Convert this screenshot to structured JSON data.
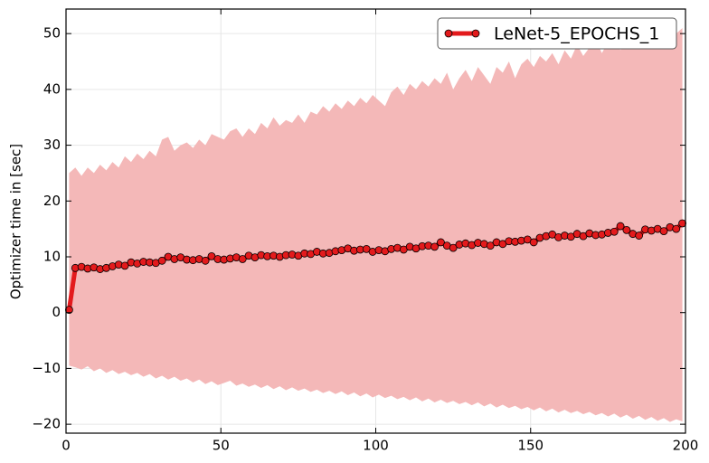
{
  "chart_data": {
    "type": "line",
    "ylabel": "Optimizer time in [sec]",
    "xlim": [
      0,
      200
    ],
    "ylim": [
      -21.6,
      54.4
    ],
    "xticks": [
      0,
      50,
      100,
      150,
      200
    ],
    "yticks": [
      {
        "value": -20,
        "label": "−20"
      },
      {
        "value": -10,
        "label": "−10"
      },
      0,
      10,
      20,
      30,
      40,
      50
    ],
    "grid": true,
    "legend": "upper right",
    "x": [
      1,
      3,
      5,
      7,
      9,
      11,
      13,
      15,
      17,
      19,
      21,
      23,
      25,
      27,
      29,
      31,
      33,
      35,
      37,
      39,
      41,
      43,
      45,
      47,
      49,
      51,
      53,
      55,
      57,
      59,
      61,
      63,
      65,
      67,
      69,
      71,
      73,
      75,
      77,
      79,
      81,
      83,
      85,
      87,
      89,
      91,
      93,
      95,
      97,
      99,
      101,
      103,
      105,
      107,
      109,
      111,
      113,
      115,
      117,
      119,
      121,
      123,
      125,
      127,
      129,
      131,
      133,
      135,
      137,
      139,
      141,
      143,
      145,
      147,
      149,
      151,
      153,
      155,
      157,
      159,
      161,
      163,
      165,
      167,
      169,
      171,
      173,
      175,
      177,
      179,
      181,
      183,
      185,
      187,
      189,
      191,
      193,
      195,
      197,
      199
    ],
    "series": [
      {
        "name": "LeNet-5_EPOCHS_1",
        "color": "#e31a1c",
        "band_color": "#f4b8b8",
        "values": [
          0.5,
          8.0,
          8.2,
          7.9,
          8.1,
          7.8,
          8.0,
          8.3,
          8.6,
          8.4,
          9.0,
          8.8,
          9.1,
          9.0,
          8.9,
          9.3,
          10.0,
          9.6,
          9.9,
          9.5,
          9.4,
          9.6,
          9.3,
          10.1,
          9.6,
          9.5,
          9.7,
          9.9,
          9.6,
          10.2,
          9.9,
          10.3,
          10.1,
          10.2,
          10.0,
          10.3,
          10.4,
          10.2,
          10.6,
          10.5,
          10.9,
          10.6,
          10.7,
          11.0,
          11.2,
          11.5,
          11.1,
          11.3,
          11.4,
          10.9,
          11.2,
          11.0,
          11.4,
          11.6,
          11.3,
          11.8,
          11.5,
          11.9,
          12.0,
          11.8,
          12.6,
          12.0,
          11.6,
          12.2,
          12.4,
          12.1,
          12.5,
          12.3,
          12.0,
          12.6,
          12.3,
          12.8,
          12.7,
          12.9,
          13.1,
          12.6,
          13.4,
          13.7,
          14.0,
          13.5,
          13.8,
          13.6,
          14.1,
          13.7,
          14.2,
          13.9,
          14.0,
          14.3,
          14.5,
          15.5,
          14.8,
          14.1,
          13.8,
          14.9,
          14.7,
          15.0,
          14.6,
          15.3,
          15.0,
          16.0
        ],
        "upper": [
          25,
          26,
          24.5,
          26,
          25,
          26.5,
          25.5,
          27,
          26,
          28,
          27,
          28.5,
          27.5,
          29,
          28,
          31,
          31.5,
          29,
          30,
          30.5,
          29.5,
          31,
          30,
          32,
          31.5,
          31,
          32.5,
          33,
          31.5,
          33,
          32,
          34,
          33,
          35,
          33.5,
          34.5,
          34,
          35.5,
          34,
          36,
          35.5,
          37,
          36,
          37.5,
          36.5,
          38,
          37,
          38.5,
          37.5,
          39,
          38,
          37,
          39.5,
          40.5,
          39,
          41,
          40,
          41.5,
          40.5,
          42,
          41,
          43,
          40,
          42,
          43.5,
          41.5,
          44,
          42.5,
          41,
          44,
          43,
          45,
          42,
          44.5,
          45.5,
          44,
          46,
          45,
          46.5,
          44.5,
          47,
          45.5,
          48,
          46,
          47.5,
          49,
          46.5,
          48.5,
          50,
          47,
          51,
          49,
          48,
          50.5,
          49.5,
          51,
          49,
          52,
          50,
          51
        ],
        "lower": [
          -9.5,
          -9.8,
          -10.2,
          -9.6,
          -10.5,
          -10,
          -10.8,
          -10.3,
          -11,
          -10.6,
          -11.2,
          -10.8,
          -11.5,
          -11,
          -11.8,
          -11.3,
          -12,
          -11.5,
          -12.2,
          -11.8,
          -12.5,
          -12,
          -12.8,
          -12.3,
          -13,
          -12.6,
          -12.2,
          -13.1,
          -12.7,
          -13.3,
          -12.9,
          -13.5,
          -13,
          -13.7,
          -13.2,
          -13.9,
          -13.4,
          -14,
          -13.6,
          -14.2,
          -13.8,
          -14.4,
          -14,
          -14.6,
          -14.1,
          -14.8,
          -14.3,
          -15,
          -14.5,
          -15.2,
          -14.7,
          -15.3,
          -14.9,
          -15.5,
          -15.1,
          -15.7,
          -15.2,
          -15.9,
          -15.4,
          -16.1,
          -15.6,
          -16.2,
          -15.8,
          -16.4,
          -16,
          -16.6,
          -16.1,
          -16.8,
          -16.3,
          -17,
          -16.5,
          -17.1,
          -16.7,
          -17.3,
          -16.9,
          -17.5,
          -17,
          -17.7,
          -17.2,
          -17.9,
          -17.4,
          -18,
          -17.6,
          -18.2,
          -17.8,
          -18.4,
          -18,
          -18.6,
          -18.1,
          -18.8,
          -18.3,
          -19,
          -18.5,
          -19.2,
          -18.7,
          -19.4,
          -18.9,
          -19.6,
          -19.1,
          -19.5
        ]
      }
    ]
  }
}
